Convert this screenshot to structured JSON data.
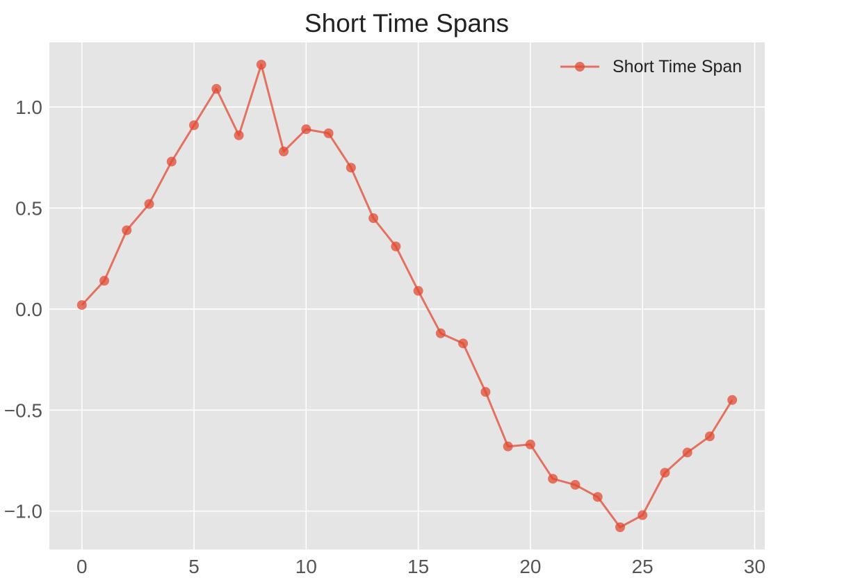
{
  "chart_data": {
    "type": "line",
    "title": "Short Time Spans",
    "xlabel": "",
    "ylabel": "",
    "xlim": [
      -1.45,
      30.45
    ],
    "ylim": [
      -1.19,
      1.32
    ],
    "x_ticks": [
      0,
      5,
      10,
      15,
      20,
      25,
      30
    ],
    "y_ticks": [
      1.0,
      0.5,
      0.0,
      -0.5,
      -1.0
    ],
    "x_tick_labels": [
      "0",
      "5",
      "10",
      "15",
      "20",
      "25",
      "30"
    ],
    "y_tick_labels": [
      "1.0",
      "0.5",
      "0.0",
      "−0.5",
      "−1.0"
    ],
    "grid": true,
    "legend_position": "top-right",
    "series": [
      {
        "name": "Short Time Span",
        "color": "#e24a33",
        "x": [
          0,
          1,
          2,
          3,
          4,
          5,
          6,
          7,
          8,
          9,
          10,
          11,
          12,
          13,
          14,
          15,
          16,
          17,
          18,
          19,
          20,
          21,
          22,
          23,
          24,
          25,
          26,
          27,
          28,
          29
        ],
        "y": [
          0.02,
          0.14,
          0.39,
          0.52,
          0.73,
          0.91,
          1.09,
          0.86,
          1.21,
          0.78,
          0.89,
          0.87,
          0.7,
          0.45,
          0.31,
          0.09,
          -0.12,
          -0.17,
          -0.41,
          -0.68,
          -0.67,
          -0.84,
          -0.87,
          -0.93,
          -1.08,
          -1.02,
          -0.81,
          -0.71,
          -0.63,
          -0.45
        ]
      }
    ]
  },
  "style": {
    "plot_background": "#e5e5e5",
    "grid_color": "#ffffff",
    "text_color": "#555555",
    "title_color": "#222222"
  }
}
